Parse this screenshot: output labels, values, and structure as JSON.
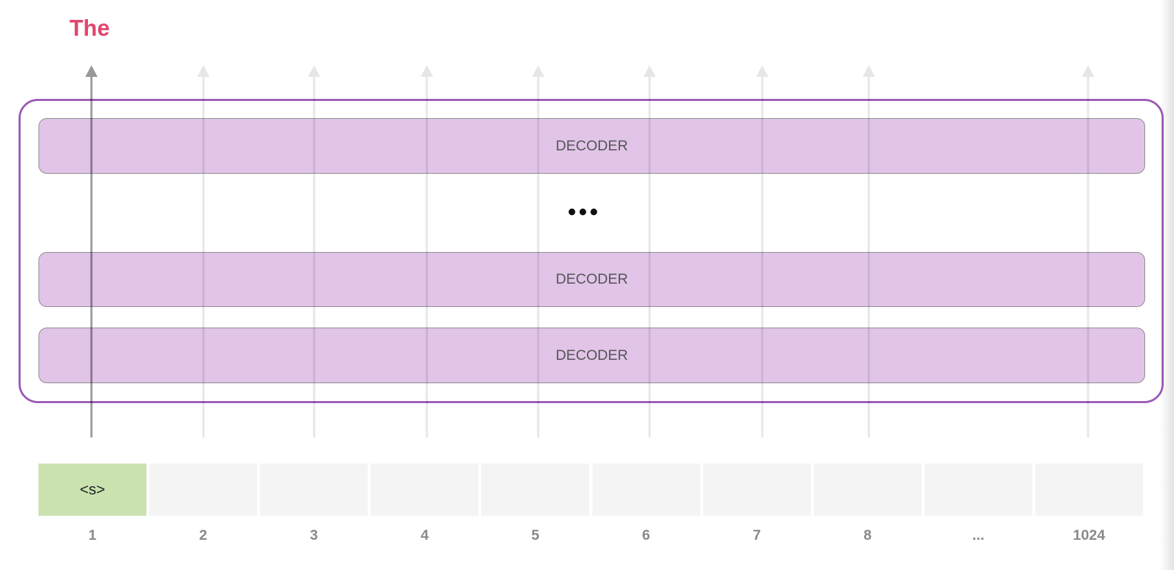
{
  "output_token": "The",
  "decoders": [
    "DECODER",
    "DECODER",
    "DECODER"
  ],
  "ellipsis": "•••",
  "colors": {
    "output_token": "#e0456e",
    "frame": "#9b59b6",
    "decoder_fill": "#e1c4e8",
    "active_token": "#c9e2b0",
    "inactive_token": "#f4f4f4",
    "active_arrow": "#999999",
    "inactive_arrow": "#e6e6e6"
  },
  "tokens": [
    {
      "text": "<s>",
      "position": "1",
      "active": true
    },
    {
      "text": "",
      "position": "2",
      "active": false
    },
    {
      "text": "",
      "position": "3",
      "active": false
    },
    {
      "text": "",
      "position": "4",
      "active": false
    },
    {
      "text": "",
      "position": "5",
      "active": false
    },
    {
      "text": "",
      "position": "6",
      "active": false
    },
    {
      "text": "",
      "position": "7",
      "active": false
    },
    {
      "text": "",
      "position": "8",
      "active": false
    },
    {
      "text": "",
      "position": "...",
      "active": false
    },
    {
      "text": "",
      "position": "1024",
      "active": false
    }
  ]
}
